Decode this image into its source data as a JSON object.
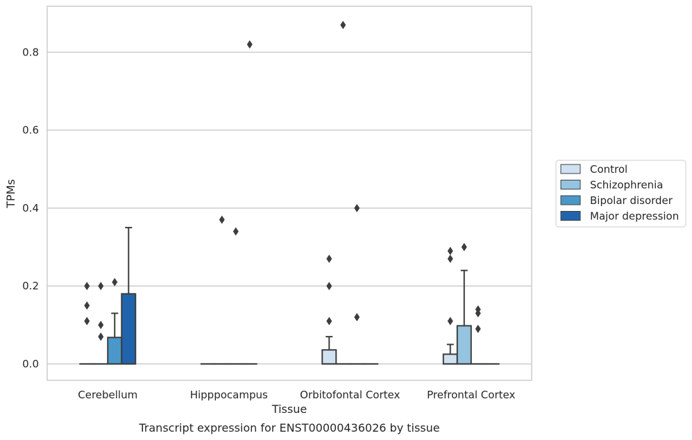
{
  "chart_data": {
    "type": "box",
    "caption": "Transcript expression for ENST00000436026 by tissue",
    "xlabel": "Tissue",
    "ylabel": "TPMs",
    "ylim": [
      -0.042,
      0.918
    ],
    "yticks": [
      0.0,
      0.2,
      0.4,
      0.6,
      0.8
    ],
    "ytick_labels": [
      "0.0",
      "0.2",
      "0.4",
      "0.6",
      "0.8"
    ],
    "grid": "horizontal",
    "legend_position": "center-right",
    "categories": [
      "Cerebellum",
      "Hipppocampus",
      "Orbitofontal Cortex",
      "Prefrontal Cortex"
    ],
    "series": [
      {
        "name": "Control",
        "color": "#d0e1f2",
        "boxes": [
          {
            "q1": 0,
            "median": 0,
            "q3": 0,
            "whisker_low": 0,
            "whisker_high": 0,
            "fliers": [
              0.2,
              0.15,
              0.11
            ]
          },
          {
            "q1": 0,
            "median": 0,
            "q3": 0,
            "whisker_low": 0,
            "whisker_high": 0,
            "fliers": []
          },
          {
            "q1": 0,
            "median": 0,
            "q3": 0.036,
            "whisker_low": 0,
            "whisker_high": 0.07,
            "fliers": [
              0.27,
              0.2,
              0.11
            ]
          },
          {
            "q1": 0,
            "median": 0,
            "q3": 0.025,
            "whisker_low": 0,
            "whisker_high": 0.05,
            "fliers": [
              0.29,
              0.27,
              0.11
            ]
          }
        ]
      },
      {
        "name": "Schizophrenia",
        "color": "#94c4df",
        "boxes": [
          {
            "q1": 0,
            "median": 0,
            "q3": 0,
            "whisker_low": 0,
            "whisker_high": 0,
            "fliers": [
              0.2,
              0.1,
              0.07
            ]
          },
          {
            "q1": 0,
            "median": 0,
            "q3": 0,
            "whisker_low": 0,
            "whisker_high": 0,
            "fliers": [
              0.37
            ]
          },
          {
            "q1": 0,
            "median": 0,
            "q3": 0,
            "whisker_low": 0,
            "whisker_high": 0,
            "fliers": [
              0.87
            ]
          },
          {
            "q1": 0,
            "median": 0,
            "q3": 0.098,
            "whisker_low": 0,
            "whisker_high": 0.24,
            "fliers": [
              0.3
            ]
          }
        ]
      },
      {
        "name": "Bipolar disorder",
        "color": "#4a98c9",
        "boxes": [
          {
            "q1": 0,
            "median": 0,
            "q3": 0.068,
            "whisker_low": 0,
            "whisker_high": 0.13,
            "fliers": [
              0.21
            ]
          },
          {
            "q1": 0,
            "median": 0,
            "q3": 0,
            "whisker_low": 0,
            "whisker_high": 0,
            "fliers": [
              0.34
            ]
          },
          {
            "q1": 0,
            "median": 0,
            "q3": 0,
            "whisker_low": 0,
            "whisker_high": 0,
            "fliers": [
              0.4,
              0.12
            ]
          },
          {
            "q1": 0,
            "median": 0,
            "q3": 0,
            "whisker_low": 0,
            "whisker_high": 0,
            "fliers": [
              0.14,
              0.13,
              0.09
            ]
          }
        ]
      },
      {
        "name": "Major depression",
        "color": "#2164ab",
        "boxes": [
          {
            "q1": 0,
            "median": 0,
            "q3": 0.18,
            "whisker_low": 0,
            "whisker_high": 0.35,
            "fliers": []
          },
          {
            "q1": 0,
            "median": 0,
            "q3": 0,
            "whisker_low": 0,
            "whisker_high": 0,
            "fliers": [
              0.82
            ]
          },
          {
            "q1": 0,
            "median": 0,
            "q3": 0,
            "whisker_low": 0,
            "whisker_high": 0,
            "fliers": []
          },
          {
            "q1": 0,
            "median": 0,
            "q3": 0,
            "whisker_low": 0,
            "whisker_high": 0,
            "fliers": []
          }
        ]
      }
    ]
  }
}
